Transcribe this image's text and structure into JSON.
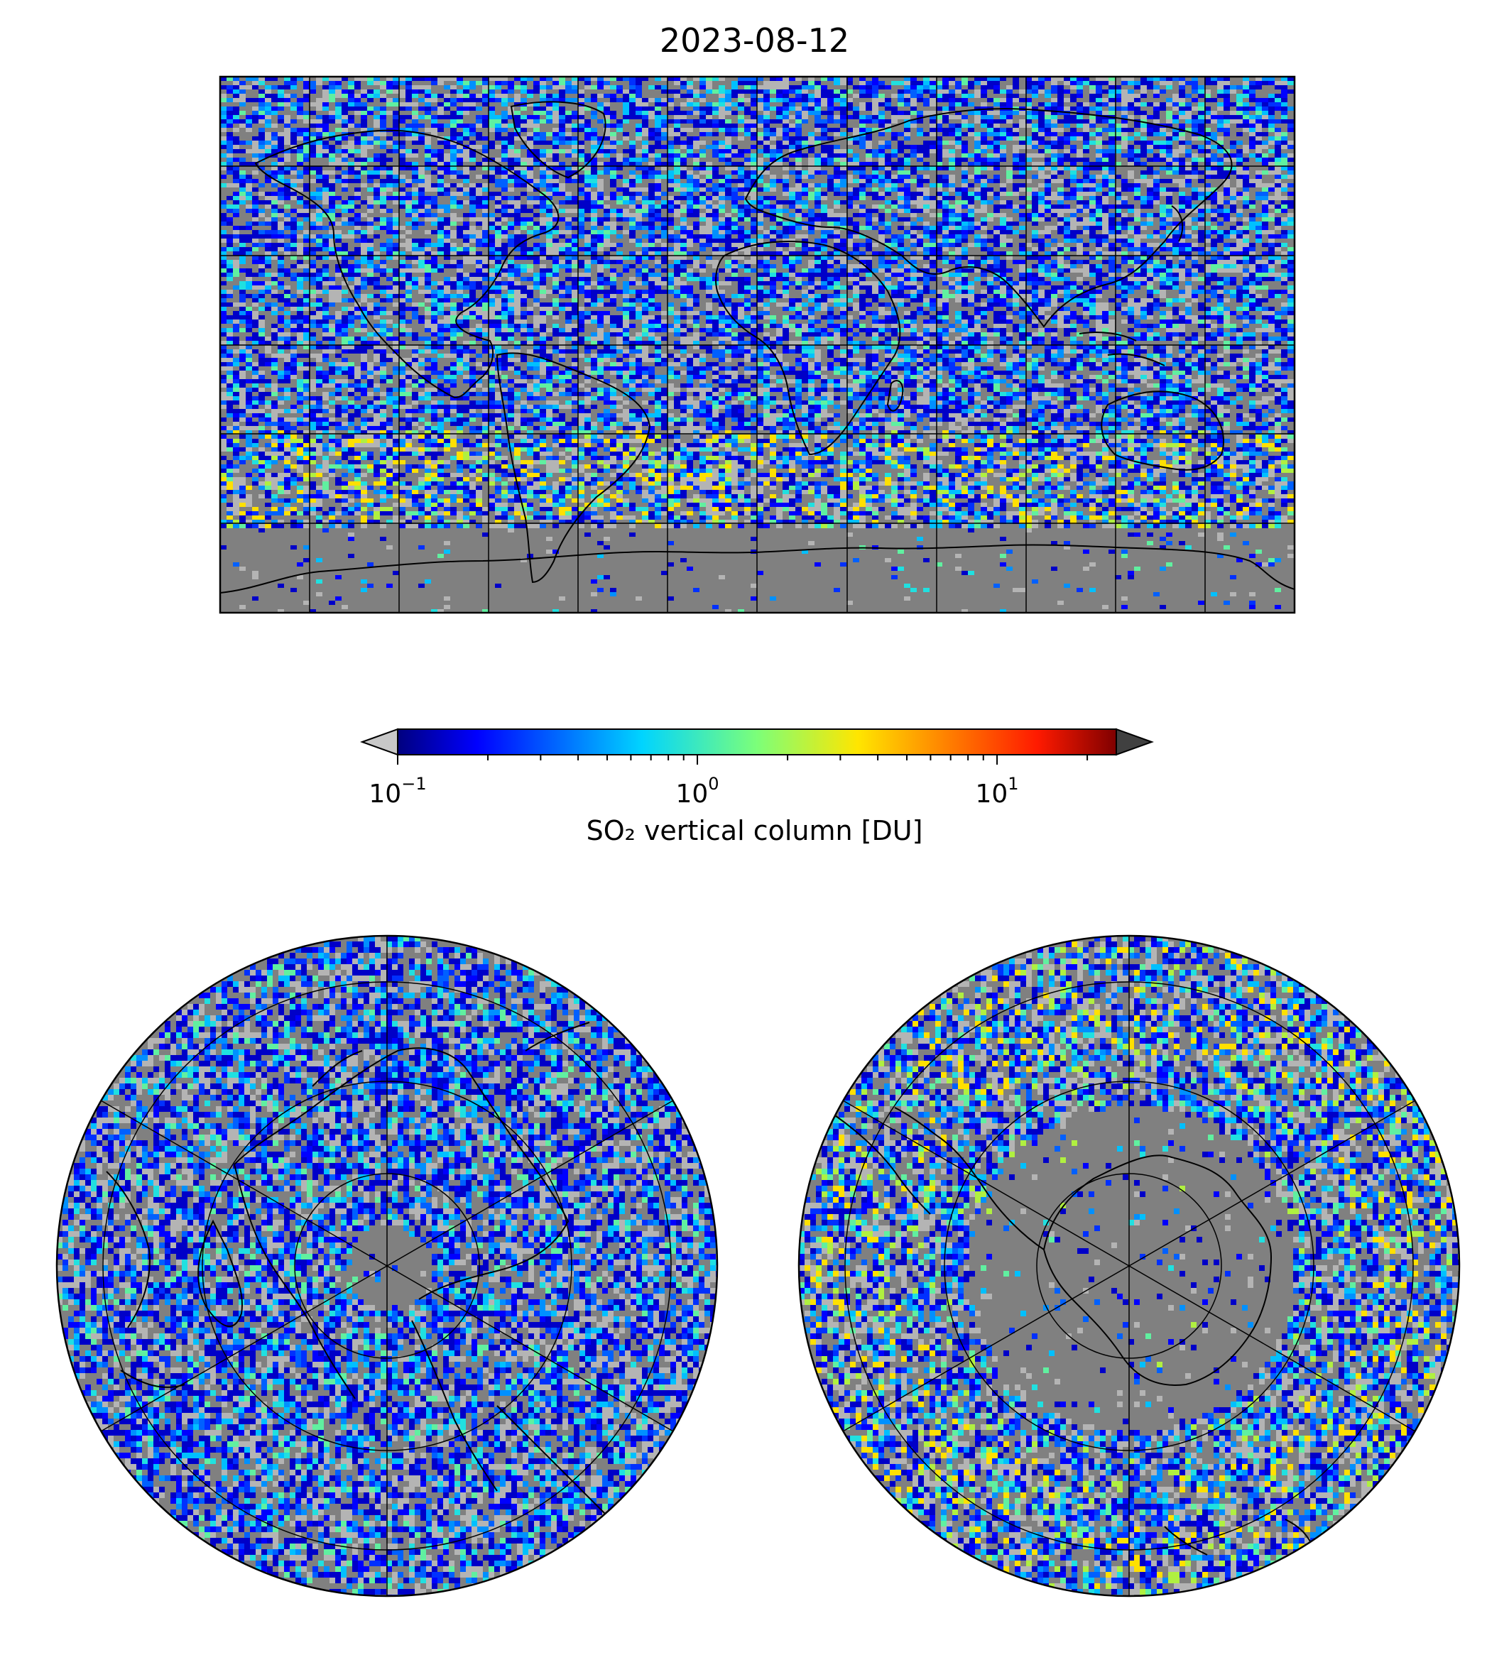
{
  "figure": {
    "title": "2023-08-12"
  },
  "colorbar": {
    "label": "SO₂ vertical column [DU]",
    "scale": "log",
    "range": [
      0.1,
      25
    ],
    "ticks": [
      {
        "base": "10",
        "exp": "−1",
        "value": 0.1
      },
      {
        "base": "10",
        "exp": "0",
        "value": 1
      },
      {
        "base": "10",
        "exp": "1",
        "value": 10
      }
    ],
    "colormap": "jet",
    "extend": "both",
    "under_color": "#c8c8c8",
    "over_color": "#404040"
  },
  "maps": [
    {
      "name": "global-map",
      "projection": "plate-carree"
    },
    {
      "name": "north-polar-map",
      "projection": "north-polar-stereographic"
    },
    {
      "name": "south-polar-map",
      "projection": "south-polar-stereographic"
    }
  ],
  "colors": {
    "no_data": "#808080",
    "below_range": "#b4b4b4",
    "gridlines": "#000000",
    "coastlines": "#000000"
  }
}
